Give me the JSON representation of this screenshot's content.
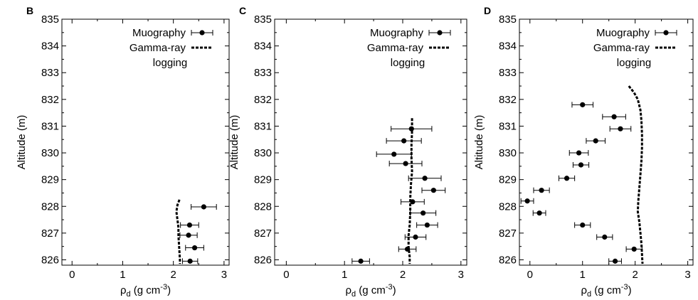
{
  "chart_data": [
    {
      "panel": "B",
      "type": "scatter",
      "xlabel": "ρd (g cm-3)",
      "xlabel_parts": {
        "main": "ρ",
        "sub": "d",
        "rest": " (g cm",
        "sup": "-3",
        "close": ")"
      },
      "ylabel": "Altitude (m)",
      "xlim": [
        -0.2,
        3.1
      ],
      "ylim": [
        825.8,
        835
      ],
      "xticks": [
        "0",
        "1",
        "2",
        "3"
      ],
      "yticks": [
        "835",
        "834",
        "833",
        "832",
        "831",
        "830",
        "829",
        "828",
        "827",
        "826"
      ],
      "legend": {
        "placement": "top-right",
        "line1": "Muography",
        "line2": "Gamma-ray",
        "line3": "logging"
      },
      "series": [
        {
          "name": "Muography",
          "kind": "points",
          "points": [
            {
              "x": 2.6,
              "y": 827.98,
              "xerr": 0.25
            },
            {
              "x": 2.32,
              "y": 827.3,
              "xerr": 0.18
            },
            {
              "x": 2.3,
              "y": 826.92,
              "xerr": 0.17
            },
            {
              "x": 2.42,
              "y": 826.45,
              "xerr": 0.18
            },
            {
              "x": 2.33,
              "y": 825.95,
              "xerr": 0.15
            }
          ]
        },
        {
          "name": "Gamma-ray logging",
          "kind": "dashed-line",
          "x": [
            2.12,
            2.08,
            2.06,
            2.08,
            2.1,
            2.1,
            2.11,
            2.12,
            2.13,
            2.13
          ],
          "y": [
            828.25,
            828.05,
            827.8,
            827.5,
            827.2,
            826.9,
            826.6,
            826.3,
            826.0,
            825.85
          ]
        }
      ]
    },
    {
      "panel": "C",
      "type": "scatter",
      "xlabel": "ρd (g cm-3)",
      "xlabel_parts": {
        "main": "ρ",
        "sub": "d",
        "rest": " (g cm",
        "sup": "-3",
        "close": ")"
      },
      "ylabel": "Altitude (m)",
      "xlim": [
        -0.2,
        3.1
      ],
      "ylim": [
        825.8,
        835
      ],
      "xticks": [
        "0",
        "1",
        "2",
        "3"
      ],
      "yticks": [
        "835",
        "834",
        "833",
        "832",
        "831",
        "830",
        "829",
        "828",
        "827",
        "826"
      ],
      "legend": {
        "placement": "top-right",
        "line1": "Muography",
        "line2": "Gamma-ray",
        "line3": "logging"
      },
      "series": [
        {
          "name": "Muography",
          "kind": "points",
          "points": [
            {
              "x": 2.15,
              "y": 830.9,
              "xerr": 0.35
            },
            {
              "x": 2.02,
              "y": 830.45,
              "xerr": 0.3
            },
            {
              "x": 1.85,
              "y": 829.95,
              "xerr": 0.3
            },
            {
              "x": 2.05,
              "y": 829.6,
              "xerr": 0.28
            },
            {
              "x": 2.38,
              "y": 829.05,
              "xerr": 0.28
            },
            {
              "x": 2.53,
              "y": 828.6,
              "xerr": 0.2
            },
            {
              "x": 2.17,
              "y": 828.17,
              "xerr": 0.2
            },
            {
              "x": 2.35,
              "y": 827.75,
              "xerr": 0.22
            },
            {
              "x": 2.42,
              "y": 827.3,
              "xerr": 0.18
            },
            {
              "x": 2.22,
              "y": 826.85,
              "xerr": 0.18
            },
            {
              "x": 2.08,
              "y": 826.4,
              "xerr": 0.15
            },
            {
              "x": 1.28,
              "y": 825.95,
              "xerr": 0.15
            }
          ]
        },
        {
          "name": "Gamma-ray logging",
          "kind": "dashed-line",
          "x": [
            2.16,
            2.16,
            2.15,
            2.15,
            2.16,
            2.14,
            2.13,
            2.13,
            2.12,
            2.1,
            2.1,
            2.12,
            2.12
          ],
          "y": [
            831.3,
            830.8,
            830.3,
            829.8,
            829.3,
            828.8,
            828.3,
            827.8,
            827.3,
            826.9,
            826.5,
            826.1,
            825.85
          ]
        }
      ]
    },
    {
      "panel": "D",
      "type": "scatter",
      "xlabel": "ρd (g cm-3)",
      "xlabel_parts": {
        "main": "ρ",
        "sub": "d",
        "rest": " (g cm",
        "sup": "-3",
        "close": ")"
      },
      "ylabel": "Altitude (m)",
      "xlim": [
        -0.2,
        3.1
      ],
      "ylim": [
        825.8,
        835
      ],
      "xticks": [
        "0",
        "1",
        "2",
        "3"
      ],
      "yticks": [
        "835",
        "834",
        "833",
        "832",
        "831",
        "830",
        "829",
        "828",
        "827",
        "826"
      ],
      "legend": {
        "placement": "top-right",
        "line1": "Muography",
        "line2": "Gamma-ray",
        "line3": "logging"
      },
      "series": [
        {
          "name": "Muography",
          "kind": "points",
          "points": [
            {
              "x": 1.0,
              "y": 831.8,
              "xerr": 0.2
            },
            {
              "x": 1.6,
              "y": 831.35,
              "xerr": 0.22
            },
            {
              "x": 1.72,
              "y": 830.9,
              "xerr": 0.2
            },
            {
              "x": 1.25,
              "y": 830.45,
              "xerr": 0.18
            },
            {
              "x": 0.93,
              "y": 830.0,
              "xerr": 0.18
            },
            {
              "x": 0.97,
              "y": 829.55,
              "xerr": 0.15
            },
            {
              "x": 0.7,
              "y": 829.05,
              "xerr": 0.15
            },
            {
              "x": 0.22,
              "y": 828.6,
              "xerr": 0.15
            },
            {
              "x": -0.05,
              "y": 828.2,
              "xerr": 0.12
            },
            {
              "x": 0.18,
              "y": 827.75,
              "xerr": 0.12
            },
            {
              "x": 1.0,
              "y": 827.3,
              "xerr": 0.15
            },
            {
              "x": 1.42,
              "y": 826.85,
              "xerr": 0.15
            },
            {
              "x": 1.98,
              "y": 826.4,
              "xerr": 0.15
            },
            {
              "x": 1.62,
              "y": 825.95,
              "xerr": 0.12
            }
          ]
        },
        {
          "name": "Gamma-ray logging",
          "kind": "dashed-line",
          "x": [
            1.88,
            1.98,
            2.05,
            2.1,
            2.12,
            2.13,
            2.13,
            2.12,
            2.1,
            2.08,
            2.06,
            2.05,
            2.08,
            2.1,
            2.12,
            2.13,
            2.14
          ],
          "y": [
            832.5,
            832.25,
            832.0,
            831.6,
            831.2,
            830.7,
            830.2,
            829.7,
            829.2,
            828.7,
            828.2,
            827.8,
            827.4,
            827.0,
            826.6,
            826.2,
            825.85
          ]
        }
      ]
    }
  ]
}
